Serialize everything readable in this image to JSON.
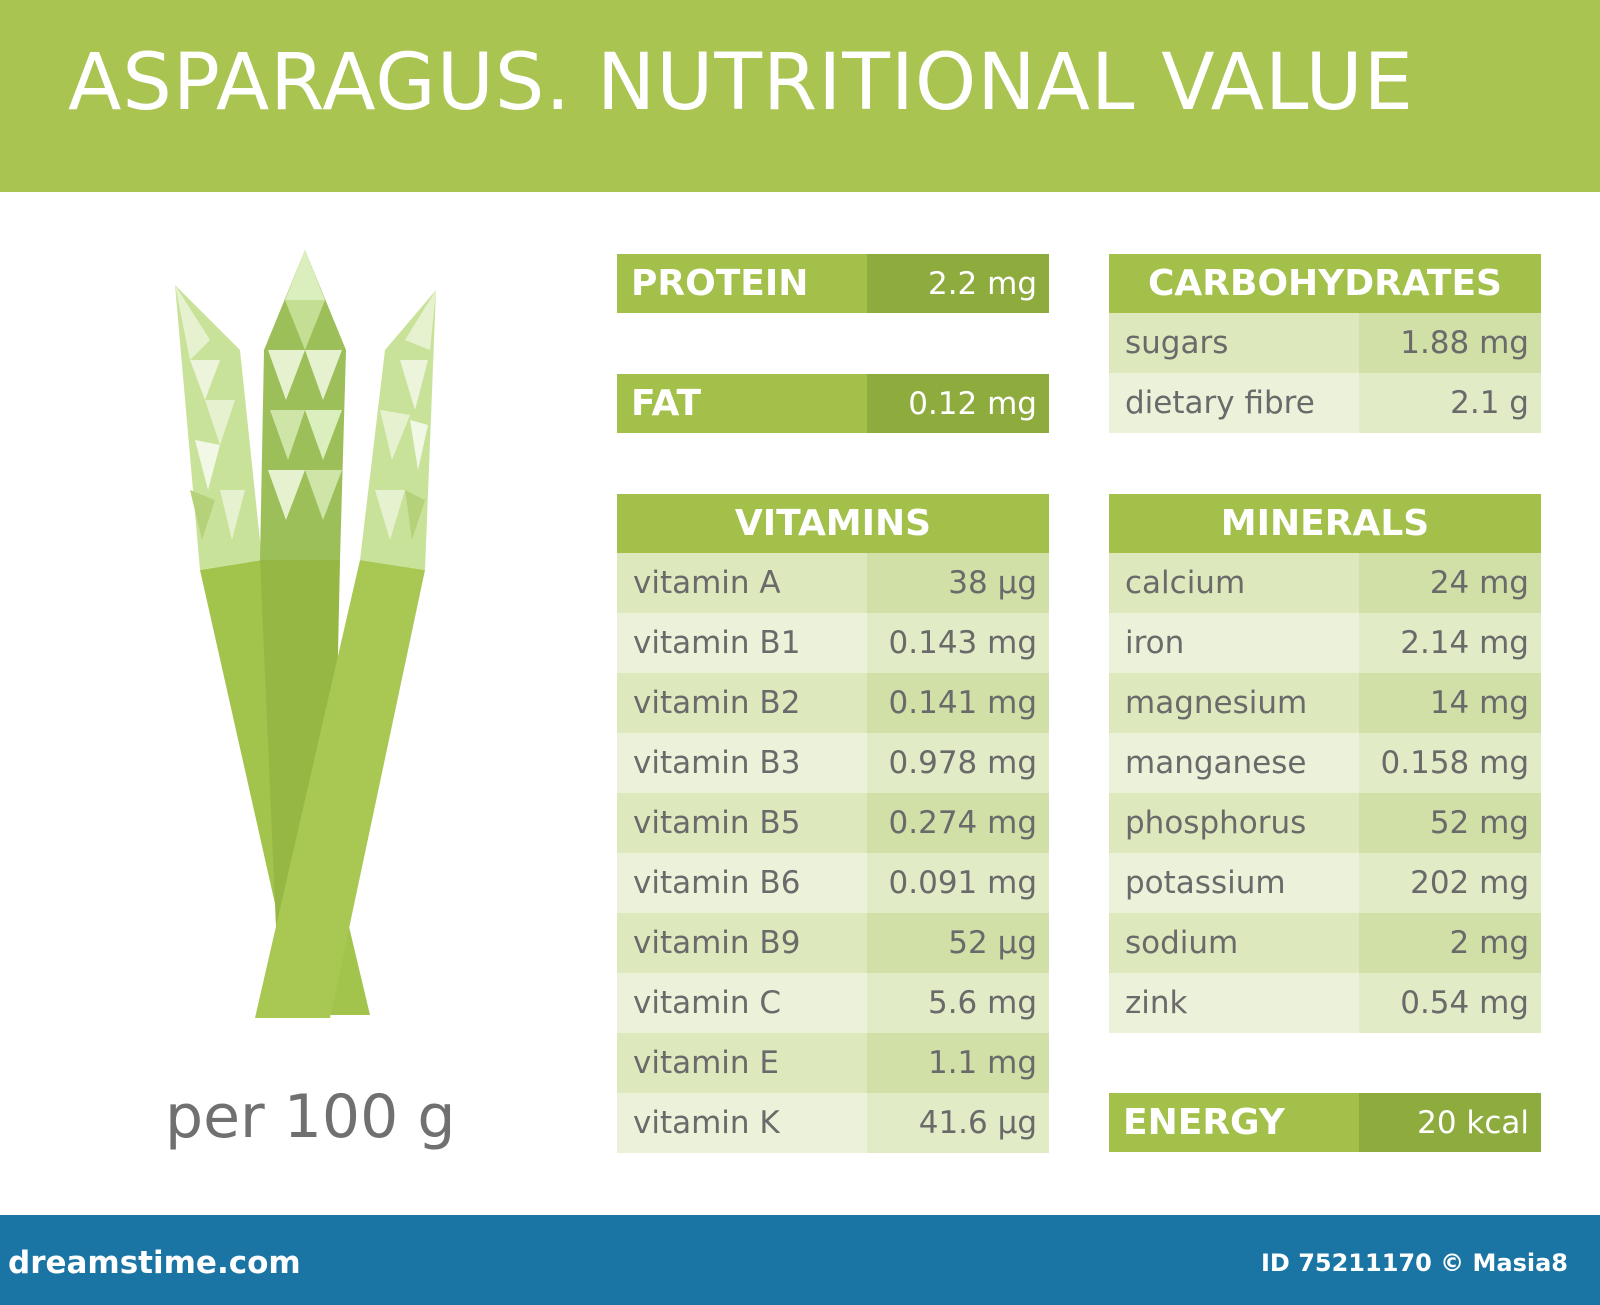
{
  "title": "ASPARAGUS. NUTRITIONAL VALUE",
  "per_label": "per 100 g",
  "protein": {
    "label": "PROTEIN",
    "value": "2.2 mg"
  },
  "fat": {
    "label": "FAT",
    "value": "0.12 mg"
  },
  "carbohydrates": {
    "title": "CARBOHYDRATES",
    "items": [
      {
        "name": "sugars",
        "value": "1.88 mg"
      },
      {
        "name": "dietary fibre",
        "value": "2.1 g"
      }
    ]
  },
  "vitamins": {
    "title": "VITAMINS",
    "items": [
      {
        "name": "vitamin A",
        "value": "38 µg"
      },
      {
        "name": "vitamin B1",
        "value": "0.143 mg"
      },
      {
        "name": "vitamin B2",
        "value": "0.141 mg"
      },
      {
        "name": "vitamin B3",
        "value": "0.978 mg"
      },
      {
        "name": "vitamin B5",
        "value": "0.274 mg"
      },
      {
        "name": "vitamin B6",
        "value": "0.091 mg"
      },
      {
        "name": "vitamin B9",
        "value": "52 µg"
      },
      {
        "name": "vitamin C",
        "value": "5.6 mg"
      },
      {
        "name": "vitamin E",
        "value": "1.1 mg"
      },
      {
        "name": "vitamin K",
        "value": "41.6 µg"
      }
    ]
  },
  "minerals": {
    "title": "MINERALS",
    "items": [
      {
        "name": "calcium",
        "value": "24 mg"
      },
      {
        "name": "iron",
        "value": "2.14 mg"
      },
      {
        "name": "magnesium",
        "value": "14 mg"
      },
      {
        "name": "manganese",
        "value": "0.158 mg"
      },
      {
        "name": "phosphorus",
        "value": "52 mg"
      },
      {
        "name": "potassium",
        "value": "202 mg"
      },
      {
        "name": "sodium",
        "value": "2 mg"
      },
      {
        "name": "zink",
        "value": "0.54 mg"
      }
    ]
  },
  "energy": {
    "label": "ENERGY",
    "value": "20 kcal"
  },
  "footer": {
    "logo": "dreamstime.com",
    "id": "ID 75211170 © Masia8"
  },
  "colors": {
    "header": "#a9c451",
    "bar": "#a2c04a",
    "bar_dark": "#8eab3e",
    "footer": "#1a75a4"
  },
  "icons": {
    "illustration": "asparagus-icon"
  }
}
